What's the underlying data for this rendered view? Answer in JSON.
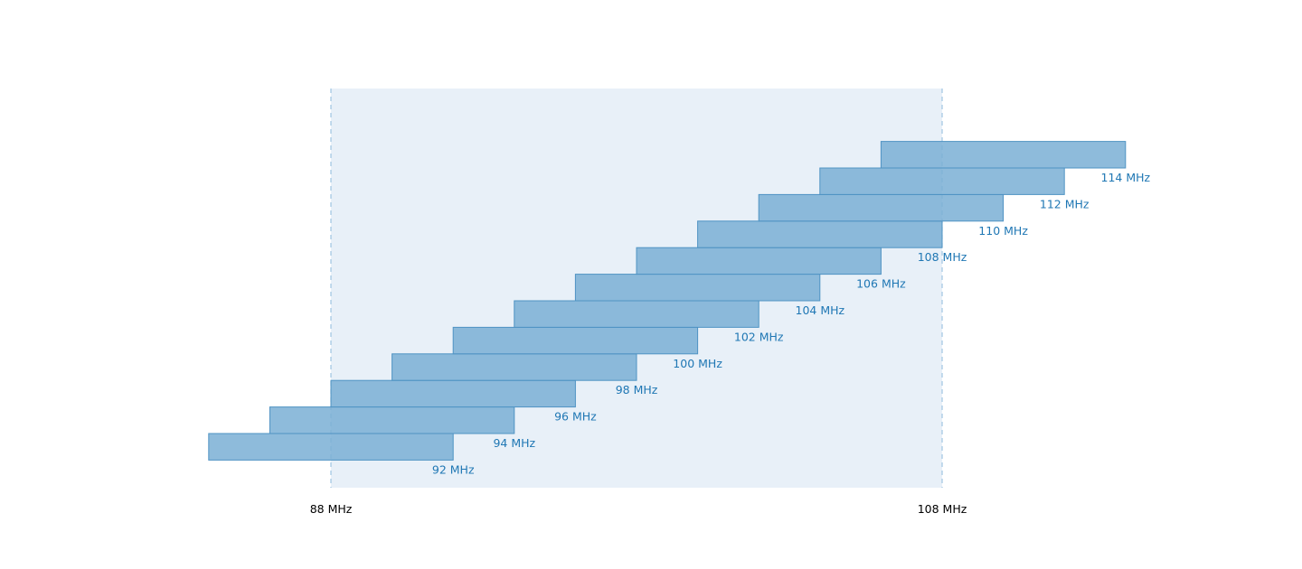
{
  "chart_data": {
    "type": "bar",
    "orientation": "horizontal-ranges",
    "bar_width_mhz": 8,
    "series": [
      {
        "label": "92 MHz",
        "start": 84,
        "end": 92
      },
      {
        "label": "94 MHz",
        "start": 86,
        "end": 94
      },
      {
        "label": "96 MHz",
        "start": 88,
        "end": 96
      },
      {
        "label": "98 MHz",
        "start": 90,
        "end": 98
      },
      {
        "label": "100 MHz",
        "start": 92,
        "end": 100
      },
      {
        "label": "102 MHz",
        "start": 94,
        "end": 102
      },
      {
        "label": "104 MHz",
        "start": 96,
        "end": 104
      },
      {
        "label": "106 MHz",
        "start": 98,
        "end": 106
      },
      {
        "label": "108 MHz",
        "start": 100,
        "end": 108
      },
      {
        "label": "110 MHz",
        "start": 102,
        "end": 110
      },
      {
        "label": "112 MHz",
        "start": 104,
        "end": 112
      },
      {
        "label": "114 MHz",
        "start": 106,
        "end": 114
      }
    ],
    "band": {
      "start": 88,
      "end": 108,
      "start_label": "88 MHz",
      "end_label": "108 MHz"
    },
    "xlim": [
      84,
      114
    ],
    "grid": false,
    "colors": {
      "bar_fill": "#7aafd5",
      "bar_stroke": "#4f93c3",
      "label_text": "#1f77b4",
      "band_fill": "#e8f0f8",
      "band_line": "#9fc4e2",
      "axis_text": "#000000"
    }
  }
}
